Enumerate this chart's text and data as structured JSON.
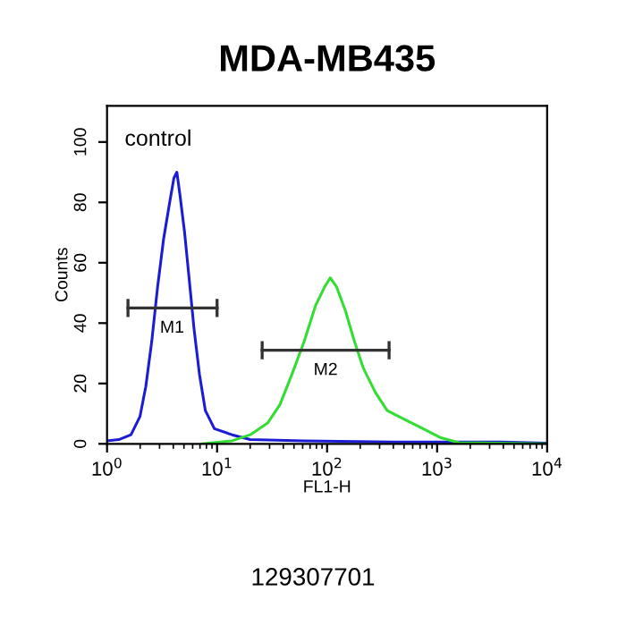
{
  "chart_data": {
    "type": "line",
    "title": "MDA-MB435",
    "xlabel": "FL1-H",
    "ylabel": "Counts",
    "log": "x",
    "xlim": [
      1,
      10000
    ],
    "xticks": [
      {
        "value": 1,
        "label": "10$^{0}$"
      },
      {
        "value": 10,
        "label": "10$^{1}$"
      },
      {
        "value": 100,
        "label": "10$^{2}$"
      },
      {
        "value": 1000,
        "label": "10$^{3}$"
      },
      {
        "value": 10000,
        "label": "10$^{4}$"
      }
    ],
    "ylim": [
      0,
      112
    ],
    "yticks": [
      0,
      20,
      40,
      60,
      80,
      100
    ],
    "grid": false,
    "legend": false,
    "series": [
      {
        "color": "#1c1cd4",
        "x": [
          1,
          1.28,
          1.65,
          1.99,
          2.25,
          2.55,
          2.88,
          3.27,
          3.71,
          4.05,
          4.31,
          4.58,
          5.07,
          5.6,
          6.18,
          6.92,
          7.83,
          9.46,
          13.7,
          20,
          62,
          400,
          3800,
          10000
        ],
        "values": [
          1,
          1.4,
          3,
          9,
          19,
          34,
          52,
          68,
          80,
          88,
          90,
          83,
          70,
          54,
          38,
          23,
          11,
          5,
          3,
          1.4,
          1,
          0.6,
          0.6,
          0.2
        ]
      },
      {
        "color": "#33dd33",
        "x": [
          7.36,
          13.7,
          20,
          29,
          37.3,
          47.9,
          62,
          78.9,
          95,
          107,
          122,
          147,
          177,
          214,
          275,
          352,
          513,
          746,
          1084,
          1585,
          10000
        ],
        "values": [
          0,
          1,
          3,
          7,
          13,
          23,
          34,
          46,
          52,
          55,
          52,
          44,
          34,
          25,
          17,
          11,
          8,
          5,
          2,
          0.4,
          0
        ]
      },
      {
        "color": "#333333",
        "x": [
          1.55,
          10
        ],
        "values": [
          45,
          45
        ],
        "errors": [
          3,
          3
        ]
      },
      {
        "color": "#333333",
        "x": [
          25.7,
          366
        ],
        "values": [
          31,
          31
        ],
        "errors": [
          3,
          3
        ]
      }
    ],
    "annotations": [
      "control",
      {
        "text": "M1",
        "x": 3.9,
        "y": 45
      },
      {
        "text": "M2",
        "x": 97,
        "y": 31
      },
      "129307701"
    ]
  }
}
